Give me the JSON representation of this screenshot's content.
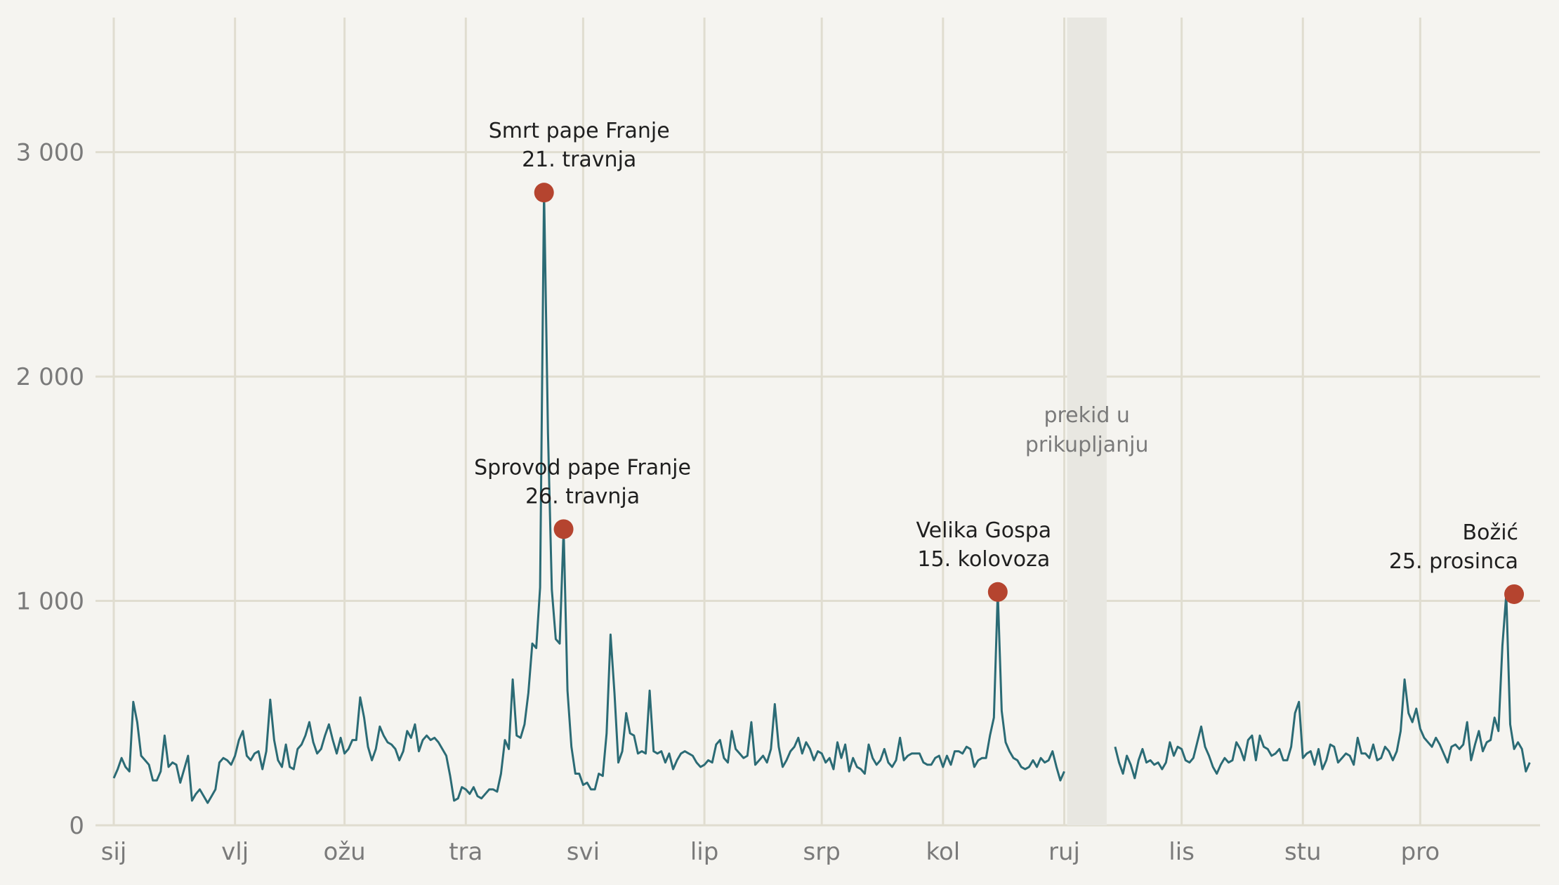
{
  "chart_data": {
    "type": "line",
    "title": "",
    "xlabel": "",
    "ylabel": "",
    "ylim": [
      0,
      3600
    ],
    "yticks": [
      0,
      1000,
      2000,
      3000
    ],
    "ytick_labels": [
      "0",
      "1 000",
      "2 000",
      "3 000"
    ],
    "xlim": [
      0,
      365
    ],
    "month_ticks": [
      {
        "day": 0,
        "label": "sij"
      },
      {
        "day": 31,
        "label": "vlj"
      },
      {
        "day": 59,
        "label": "ožu"
      },
      {
        "day": 90,
        "label": "tra"
      },
      {
        "day": 120,
        "label": "svi"
      },
      {
        "day": 151,
        "label": "lip"
      },
      {
        "day": 181,
        "label": "srp"
      },
      {
        "day": 212,
        "label": "kol"
      },
      {
        "day": 243,
        "label": "ruj"
      },
      {
        "day": 273,
        "label": "lis"
      },
      {
        "day": 304,
        "label": "stu"
      },
      {
        "day": 334,
        "label": "pro"
      }
    ],
    "grid": true,
    "colors": {
      "line": "#2b6b75",
      "marker": "#b5442f",
      "grid": "#e0ddd0",
      "gap": "#e8e7e1"
    },
    "gap": {
      "start_day": 243,
      "end_day": 256,
      "label": "prekid u prikupljanju"
    },
    "series": [
      {
        "segments": [
          {
            "start_day": 0,
            "values": [
              210,
              250,
              300,
              260,
              240,
              550,
              460,
              310,
              290,
              270,
              200,
              200,
              240,
              400,
              260,
              280,
              270,
              190,
              250,
              310,
              110,
              140,
              160,
              130,
              100,
              130,
              160,
              280,
              300,
              290,
              270,
              310,
              380,
              420,
              310,
              290,
              320,
              330,
              250,
              330,
              560,
              380,
              290,
              260,
              360,
              260,
              250,
              340,
              360,
              400,
              460,
              370,
              320,
              340,
              400,
              450,
              380,
              320,
              390,
              320,
              340,
              380,
              380,
              570,
              480,
              350,
              290,
              340,
              440,
              400,
              370,
              360,
              340,
              290,
              330,
              420,
              390,
              450,
              330,
              380,
              400,
              380,
              390,
              370,
              340,
              310,
              220,
              110,
              120,
              170,
              160,
              140,
              170,
              130,
              120,
              140,
              160,
              160,
              150,
              230,
              380,
              340,
              650,
              400,
              390,
              450,
              590,
              810,
              790,
              1060,
              2830,
              1750,
              1050,
              830,
              810,
              1320,
              600,
              350,
              230,
              230,
              180,
              190,
              160,
              160,
              230,
              220,
              410,
              850,
              590,
              280,
              330,
              500,
              410,
              400,
              320,
              330,
              320,
              600,
              330,
              320,
              330,
              280,
              320,
              250,
              290,
              320,
              330,
              320,
              310,
              280,
              260,
              270,
              290,
              280,
              360,
              380,
              300,
              280,
              420,
              340,
              320,
              300,
              310,
              460,
              270,
              290,
              310,
              280,
              340,
              540,
              350,
              260,
              290,
              330,
              350,
              390,
              320,
              370,
              340,
              290,
              330,
              320,
              280,
              300,
              250,
              370,
              300,
              360,
              240,
              300,
              260,
              250,
              230,
              360,
              300,
              270,
              290,
              340,
              280,
              260,
              290,
              390,
              290,
              310,
              320,
              320,
              320,
              280,
              270,
              270,
              300,
              310,
              260,
              310,
              270,
              330,
              330,
              320,
              350,
              340,
              260,
              290,
              300,
              300,
              400,
              480,
              1040,
              510,
              370,
              330,
              300,
              290,
              260,
              250,
              260,
              290,
              260,
              300,
              280,
              290,
              330,
              260,
              200,
              240
            ]
          },
          {
            "start_day": 256,
            "values": [
              350,
              280,
              230,
              310,
              270,
              210,
              290,
              340,
              280,
              290,
              270,
              280,
              250,
              280,
              370,
              310,
              350,
              340,
              290,
              280,
              300,
              370,
              440,
              350,
              310,
              260,
              230,
              270,
              300,
              280,
              290,
              370,
              340,
              290,
              380,
              400,
              290,
              400,
              350,
              340,
              310,
              320,
              340,
              290,
              290,
              350,
              500,
              550,
              300,
              320,
              330,
              270,
              340,
              250,
              290,
              360,
              350,
              280,
              300,
              320,
              310,
              270,
              390,
              320,
              320,
              300,
              360,
              290,
              300,
              350,
              330,
              290,
              330,
              420,
              650,
              500,
              460,
              520,
              430,
              390,
              370,
              350,
              390,
              360,
              320,
              280,
              350,
              360,
              340,
              360,
              460,
              290,
              360,
              420,
              330,
              370,
              380,
              480,
              420,
              800,
              1030,
              450,
              340,
              370,
              340,
              240,
              280
            ]
          }
        ]
      }
    ],
    "annotations": [
      {
        "day": 110,
        "value": 2820,
        "line1": "Smrt pape Franje",
        "line2": "21. travnja"
      },
      {
        "day": 115,
        "value": 1320,
        "line1": "Sprovod pape Franje",
        "line2": "26. travnja"
      },
      {
        "day": 226,
        "value": 1040,
        "line1": "Velika Gospa",
        "line2": "15. kolovoza"
      },
      {
        "day": 358,
        "value": 1030,
        "line1": "Božić",
        "line2": "25. prosinca"
      }
    ]
  }
}
